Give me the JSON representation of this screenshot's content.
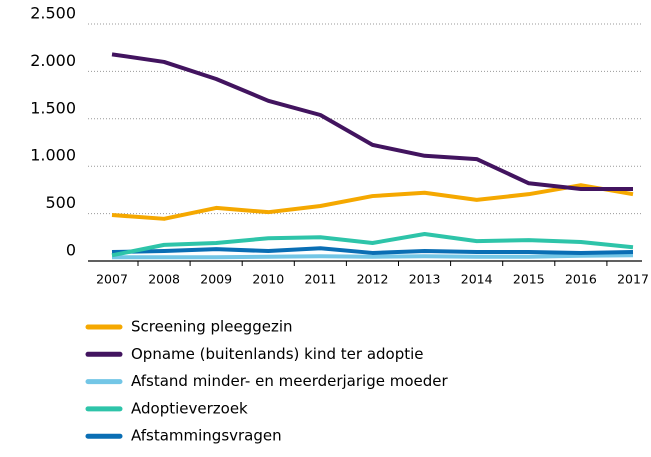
{
  "chart_data": {
    "type": "line",
    "x": [
      2007,
      2008,
      2009,
      2010,
      2011,
      2012,
      2013,
      2014,
      2015,
      2016,
      2017
    ],
    "xlim": [
      2007,
      2017
    ],
    "xticks": [
      2007,
      2008,
      2009,
      2010,
      2011,
      2012,
      2013,
      2014,
      2015,
      2016,
      2017
    ],
    "ylim": [
      0,
      2500
    ],
    "yticks": [
      0,
      500,
      {
        "value": 1000,
        "label": "1.000"
      },
      {
        "value": 1500,
        "label": "1.500"
      },
      {
        "value": 2000,
        "label": "2.000"
      },
      {
        "value": 2500,
        "label": "2.500"
      }
    ],
    "grid": true,
    "legend": "bottom",
    "series": [
      {
        "name": "Screening pleeggezin",
        "color": "#f5a800",
        "values": [
          485,
          445,
          560,
          515,
          580,
          685,
          720,
          645,
          705,
          800,
          705
        ]
      },
      {
        "name": "Opname (buitenlands) kind ter adoptie",
        "color": "#42145f",
        "values": [
          2180,
          2100,
          1920,
          1690,
          1540,
          1225,
          1110,
          1075,
          820,
          760,
          760
        ]
      },
      {
        "name": "Afstand minder- en meerderjarige moeder",
        "color": "#73c6e6",
        "values": [
          40,
          40,
          40,
          45,
          50,
          45,
          50,
          45,
          45,
          55,
          60
        ]
      },
      {
        "name": "Adoptieverzoek",
        "color": "#2ec4a9",
        "values": [
          60,
          170,
          190,
          240,
          250,
          190,
          285,
          210,
          220,
          200,
          145
        ]
      },
      {
        "name": "Afstammingsvragen",
        "color": "#0a6eb4",
        "values": [
          95,
          105,
          125,
          105,
          135,
          85,
          105,
          95,
          95,
          85,
          95
        ]
      }
    ]
  }
}
